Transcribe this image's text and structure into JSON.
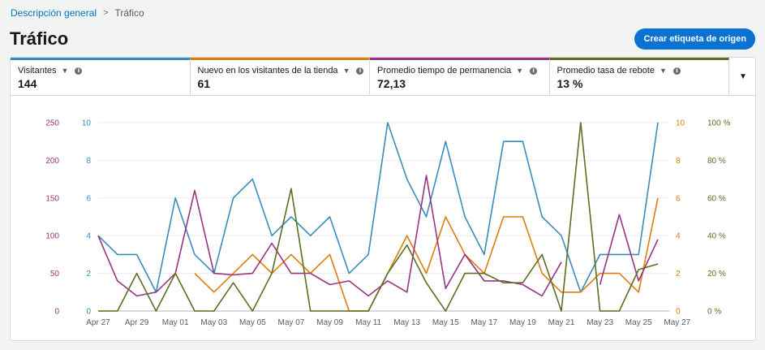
{
  "breadcrumb": {
    "parent": "Descripción general",
    "current": "Tráfico"
  },
  "page_title": "Tráfico",
  "create_button": "Crear etiqueta de origen",
  "colors": {
    "visitors": "#3b8cbd",
    "new": "#dd7d09",
    "time": "#983482",
    "bounce": "#5b6f21"
  },
  "tabs": [
    {
      "title": "Visitantes",
      "value": "144"
    },
    {
      "title": "Nuevo en los visitantes de la tienda",
      "value": "61"
    },
    {
      "title": "Promedio tiempo de permanencia",
      "value": "72,13"
    },
    {
      "title": "Promedio tasa de rebote",
      "value": "13 %"
    }
  ],
  "chart_data": {
    "type": "line",
    "x": [
      "Apr 27",
      "Apr 28",
      "Apr 29",
      "Apr 30",
      "May 01",
      "May 02",
      "May 03",
      "May 04",
      "May 05",
      "May 06",
      "May 07",
      "May 08",
      "May 09",
      "May 10",
      "May 11",
      "May 12",
      "May 13",
      "May 14",
      "May 15",
      "May 16",
      "May 17",
      "May 18",
      "May 19",
      "May 20",
      "May 21",
      "May 22",
      "May 23",
      "May 24",
      "May 25",
      "May 26"
    ],
    "x_tick_labels": [
      "Apr 27",
      "Apr 29",
      "May 01",
      "May 03",
      "May 05",
      "May 07",
      "May 09",
      "May 11",
      "May 13",
      "May 15",
      "May 17",
      "May 19",
      "May 21",
      "May 23",
      "May 25",
      "May 27"
    ],
    "axes": {
      "time": {
        "ticks": [
          "0",
          "50",
          "100",
          "150",
          "200",
          "250"
        ],
        "range": [
          0,
          250
        ]
      },
      "visitors": {
        "ticks": [
          "0",
          "2",
          "4",
          "6",
          "8",
          "10"
        ],
        "range": [
          0,
          10
        ]
      },
      "new": {
        "ticks": [
          "0",
          "2",
          "4",
          "6",
          "8",
          "10"
        ],
        "range": [
          0,
          10
        ]
      },
      "bounce": {
        "ticks": [
          "0 %",
          "20 %",
          "40 %",
          "60 %",
          "80 %",
          "100 %"
        ],
        "range": [
          0,
          100
        ]
      }
    },
    "series": [
      {
        "key": "visitors",
        "values": [
          4,
          3,
          3,
          1,
          6,
          3,
          2,
          6,
          7,
          4,
          5,
          4,
          5,
          2,
          3,
          10,
          7,
          5,
          9,
          5,
          3,
          9,
          9,
          5,
          4,
          1,
          3,
          3,
          3,
          10
        ]
      },
      {
        "key": "new",
        "values": [
          null,
          null,
          null,
          null,
          null,
          2,
          1,
          2,
          3,
          2,
          3,
          2,
          3,
          0,
          0,
          2,
          4,
          2,
          5,
          3,
          2,
          5,
          5,
          2,
          1,
          1,
          2,
          2,
          1,
          6
        ]
      },
      {
        "key": "time",
        "values": [
          100,
          40,
          20,
          25,
          50,
          160,
          50,
          48,
          50,
          90,
          50,
          50,
          35,
          40,
          20,
          40,
          25,
          180,
          30,
          75,
          40,
          40,
          35,
          20,
          65,
          null,
          35,
          128,
          40,
          95
        ]
      },
      {
        "key": "bounce",
        "values": [
          0,
          0,
          20,
          0,
          20,
          0,
          0,
          15,
          0,
          20,
          65,
          0,
          0,
          0,
          0,
          20,
          35,
          15,
          0,
          20,
          20,
          15,
          15,
          30,
          0,
          100,
          0,
          0,
          22,
          25
        ]
      }
    ]
  }
}
